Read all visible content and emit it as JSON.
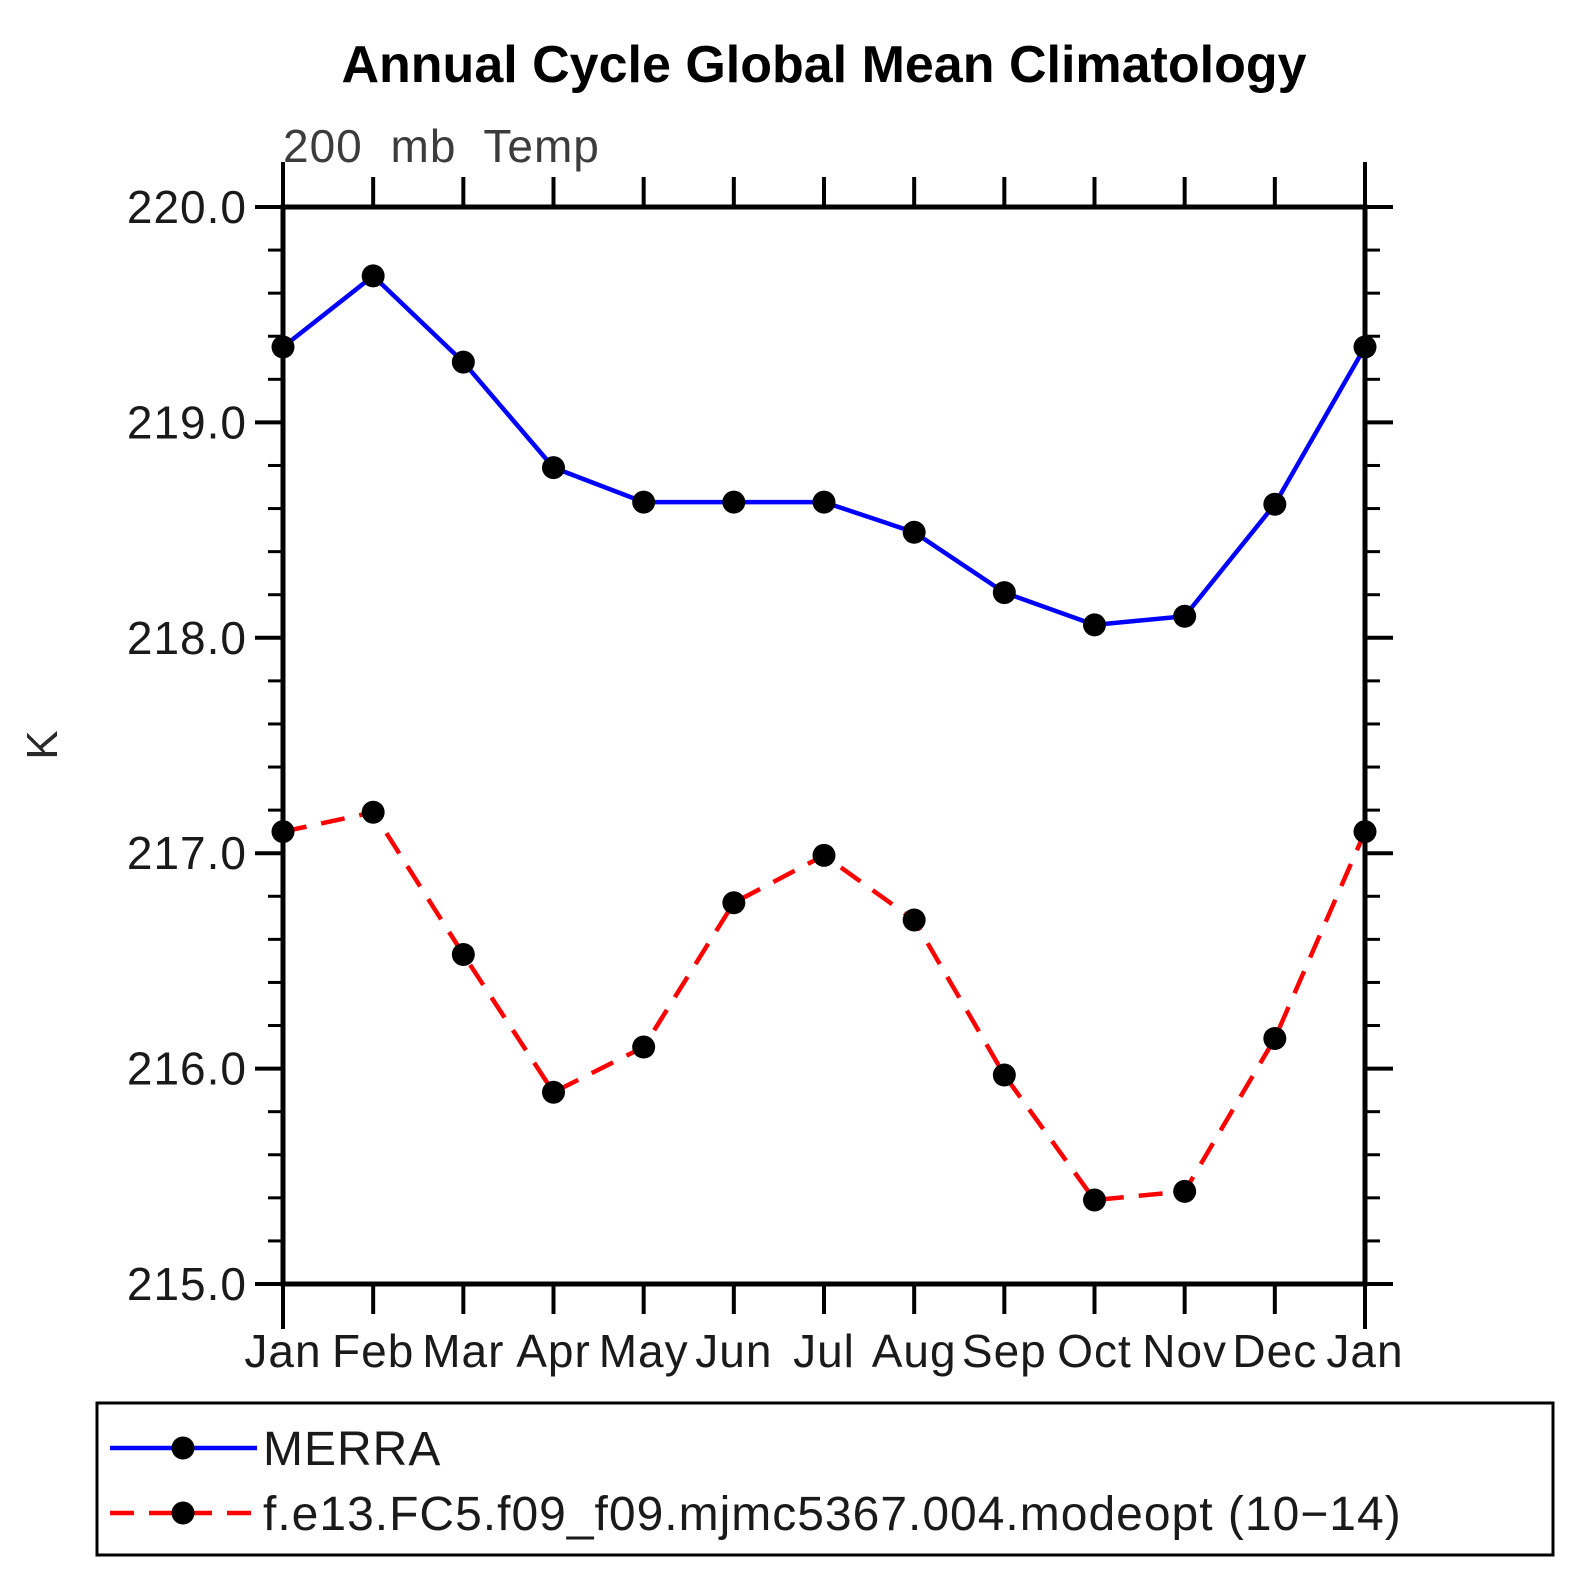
{
  "chart_data": {
    "type": "line",
    "title": "Annual Cycle Global Mean Climatology",
    "subtitle": "200 mb Temp",
    "ylabel": "K",
    "xlabel": "",
    "categories": [
      "Jan",
      "Feb",
      "Mar",
      "Apr",
      "May",
      "Jun",
      "Jul",
      "Aug",
      "Sep",
      "Oct",
      "Nov",
      "Dec",
      "Jan"
    ],
    "y_axis": {
      "min": 215.0,
      "max": 220.0,
      "major_step": 1.0,
      "minor_step": 0.2,
      "tick_labels": [
        "220.0",
        "219.0",
        "218.0",
        "217.0",
        "216.0",
        "215.0"
      ]
    },
    "grid": "off",
    "legend_position": "bottom-left-box",
    "marker": {
      "shape": "circle",
      "color": "#000000"
    },
    "series": [
      {
        "name": "MERRA",
        "color": "#0000ff",
        "line_style": "solid",
        "values": [
          219.35,
          219.68,
          219.28,
          218.79,
          218.63,
          218.63,
          218.63,
          218.49,
          218.21,
          218.06,
          218.1,
          218.62,
          219.35
        ]
      },
      {
        "name": "f.e13.FC5.f09_f09.mjmc5367.004.modeopt (10−14)",
        "color": "#ff0000",
        "line_style": "dashed",
        "values": [
          217.1,
          217.19,
          216.53,
          215.89,
          216.1,
          216.77,
          216.99,
          216.69,
          215.97,
          215.39,
          215.43,
          216.14,
          217.1
        ]
      }
    ]
  }
}
